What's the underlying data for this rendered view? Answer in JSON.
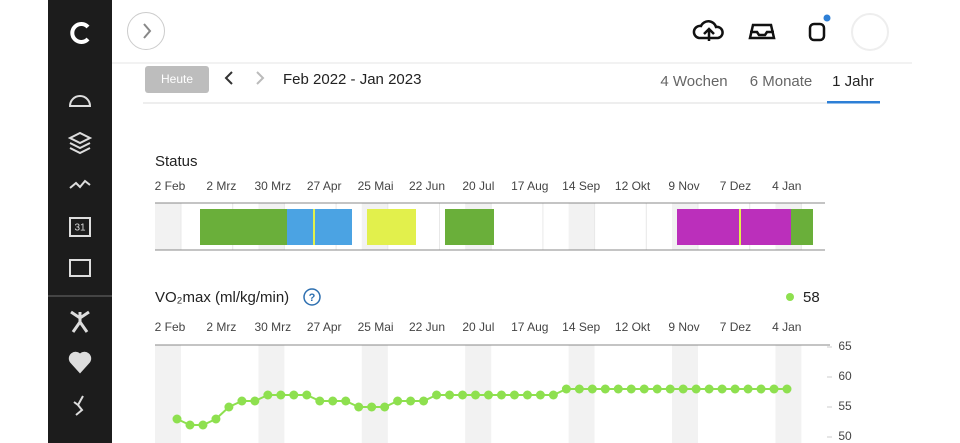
{
  "toolbar": {
    "today_button": "Heute",
    "date_range": "Feb 2022 - Jan 2023",
    "tabs": [
      "4 Wochen",
      "6 Monate",
      "1 Jahr"
    ]
  },
  "sidebar": {
    "calendar_icon": "31"
  },
  "status_chart": {
    "title": "Status",
    "xlabels": [
      "2 Feb",
      "2 Mrz",
      "30 Mrz",
      "27 Apr",
      "25 Mai",
      "22 Jun",
      "20 Jul",
      "17 Aug",
      "14 Sep",
      "12 Okt",
      "9 Nov",
      "7 Dez",
      "4 Jan"
    ]
  },
  "chart_data": {
    "type": "line",
    "title": "VO₂max (ml/kg/min)",
    "help_icon": "?",
    "xlabels": [
      "2 Feb",
      "2 Mrz",
      "30 Mrz",
      "27 Apr",
      "25 Mai",
      "22 Jun",
      "20 Jul",
      "17 Aug",
      "14 Sep",
      "12 Okt",
      "9 Nov",
      "7 Dez",
      "4 Jan"
    ],
    "series": [
      {
        "name": "58",
        "color": "#8ee04f",
        "values": [
          53,
          52,
          52,
          53,
          55,
          56,
          56,
          57,
          57,
          57,
          57,
          56,
          56,
          56,
          55,
          55,
          55,
          56,
          56,
          56,
          57,
          57,
          57,
          57,
          57,
          57,
          57,
          57,
          57,
          57,
          58,
          58,
          58,
          58,
          58,
          58,
          58,
          58,
          58,
          58,
          58,
          58,
          58,
          58,
          58,
          58,
          58,
          58
        ]
      }
    ],
    "ylim": [
      50,
      65
    ],
    "yticks": [
      50,
      55,
      60,
      65
    ]
  }
}
